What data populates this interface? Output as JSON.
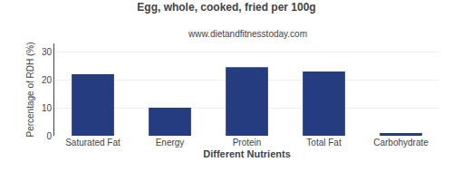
{
  "chart_data": {
    "type": "bar",
    "title": "Egg, whole, cooked, fried per 100g",
    "subtitle": "www.dietandfitnesstoday.com",
    "xlabel": "Different Nutrients",
    "ylabel": "Percentage of RDH (%)",
    "categories": [
      "Saturated Fat",
      "Energy",
      "Protein",
      "Total Fat",
      "Carbohydrate"
    ],
    "values": [
      22,
      10,
      24.5,
      23,
      1
    ],
    "color": "#253C7E",
    "ylim": [
      0,
      33
    ],
    "yticks": [
      0,
      10,
      20,
      30
    ],
    "grid": true
  }
}
